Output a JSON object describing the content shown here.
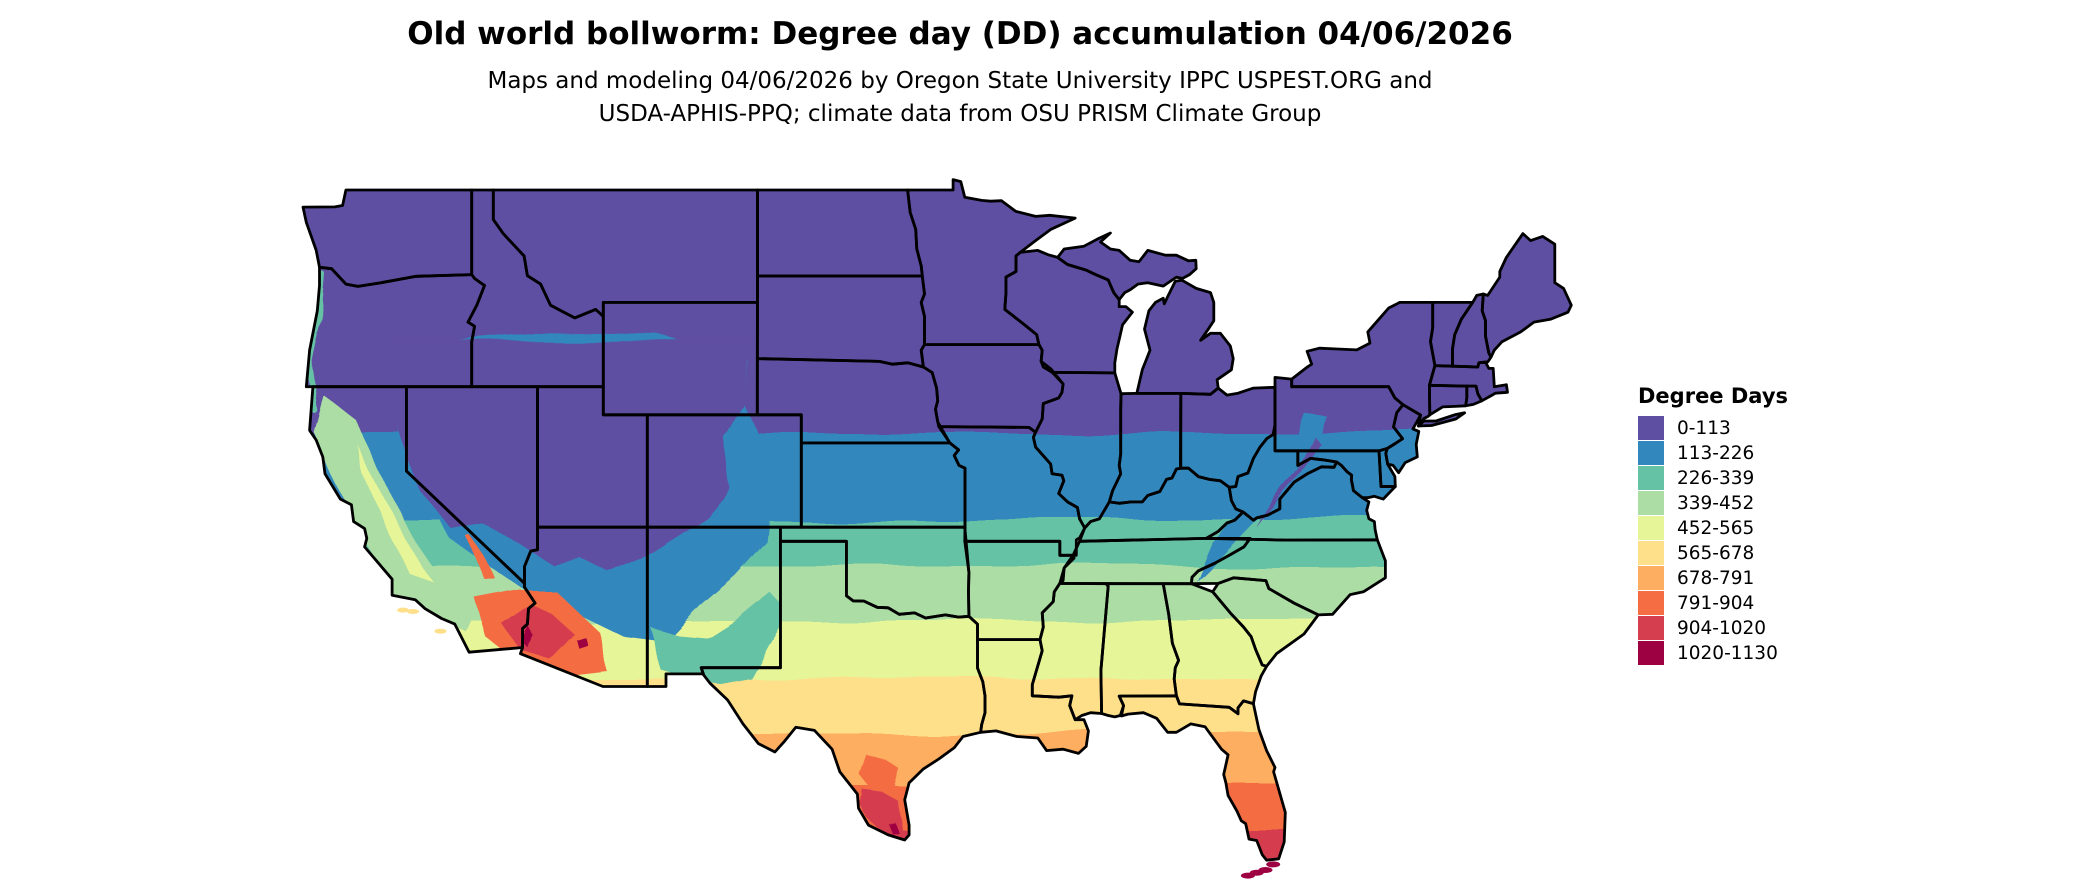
{
  "header": {
    "title": "Old world bollworm: Degree day (DD) accumulation 04/06/2026",
    "subtitle_line1": "Maps and modeling 04/06/2026 by Oregon State University IPPC USPEST.ORG and",
    "subtitle_line2": "USDA-APHIS-PPQ; climate data from OSU PRISM Climate Group"
  },
  "legend": {
    "title": "Degree Days",
    "items": [
      {
        "label": "0-113",
        "color": "#5e4fa2"
      },
      {
        "label": "113-226",
        "color": "#3288bd"
      },
      {
        "label": "226-339",
        "color": "#66c2a5"
      },
      {
        "label": "339-452",
        "color": "#abdda4"
      },
      {
        "label": "452-565",
        "color": "#e6f598"
      },
      {
        "label": "565-678",
        "color": "#fee08b"
      },
      {
        "label": "678-791",
        "color": "#fdae61"
      },
      {
        "label": "791-904",
        "color": "#f46d43"
      },
      {
        "label": "904-1020",
        "color": "#d53e4f"
      },
      {
        "label": "1020-1130",
        "color": "#9e0142"
      }
    ]
  }
}
